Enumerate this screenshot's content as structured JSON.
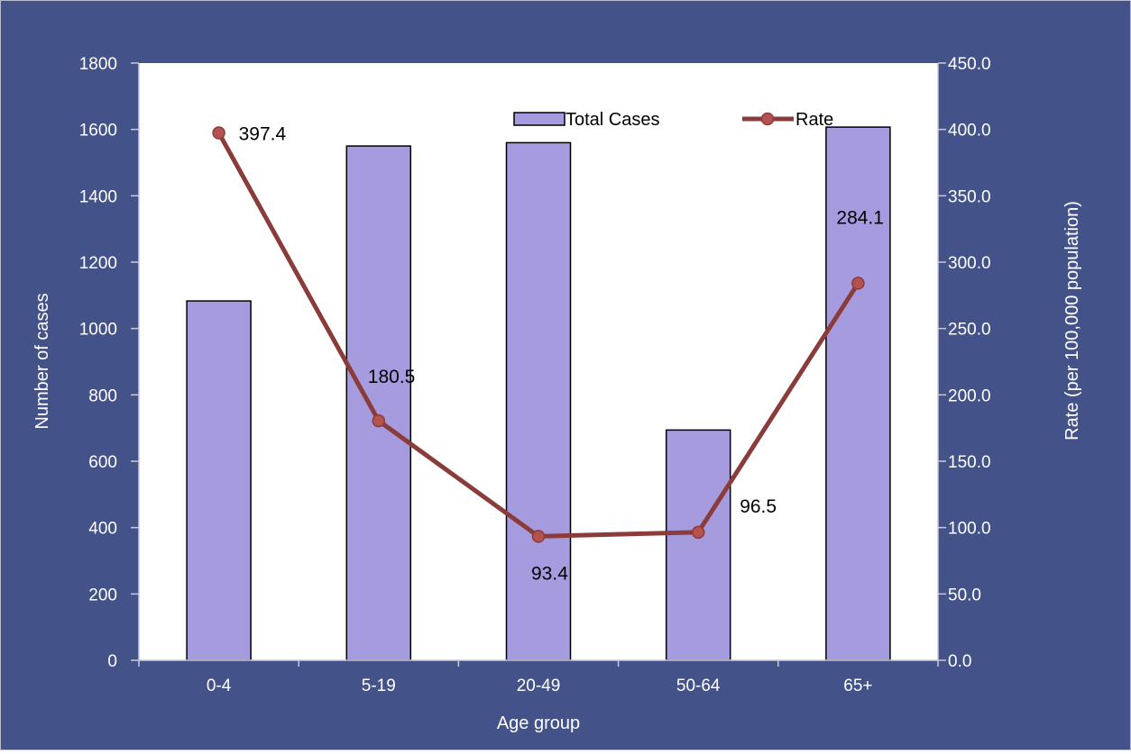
{
  "chart_data": {
    "type": "bar",
    "categories": [
      "0-4",
      "5-19",
      "20-49",
      "50-64",
      "65+"
    ],
    "series": [
      {
        "name": "Total Cases",
        "type": "bar",
        "axis": "left",
        "values": [
          1083,
          1550,
          1560,
          694,
          1607
        ]
      },
      {
        "name": "Rate",
        "type": "line",
        "axis": "right",
        "values": [
          397.4,
          180.5,
          93.4,
          96.5,
          284.1
        ]
      }
    ],
    "data_labels": [
      "397.4",
      "180.5",
      "93.4",
      "96.5",
      "284.1"
    ],
    "xlabel": "Age group",
    "ylabel": "Number of cases",
    "y2label": "Rate (per 100,000 population)",
    "ylim": [
      0,
      1800
    ],
    "y2lim": [
      0,
      450
    ],
    "yticks": [
      "0",
      "200",
      "400",
      "600",
      "800",
      "1000",
      "1200",
      "1400",
      "1600",
      "1800"
    ],
    "y2ticks": [
      "0.0",
      "50.0",
      "100.0",
      "150.0",
      "200.0",
      "250.0",
      "300.0",
      "350.0",
      "400.0",
      "450.0"
    ],
    "legend": "top-right",
    "grid": false,
    "colors": {
      "frame_bg": "#44528a",
      "plot_bg": "#ffffff",
      "bar_fill": "#a79be0",
      "bar_stroke": "#000000",
      "line": "#8a3c3b",
      "marker": "#b5524f"
    }
  }
}
